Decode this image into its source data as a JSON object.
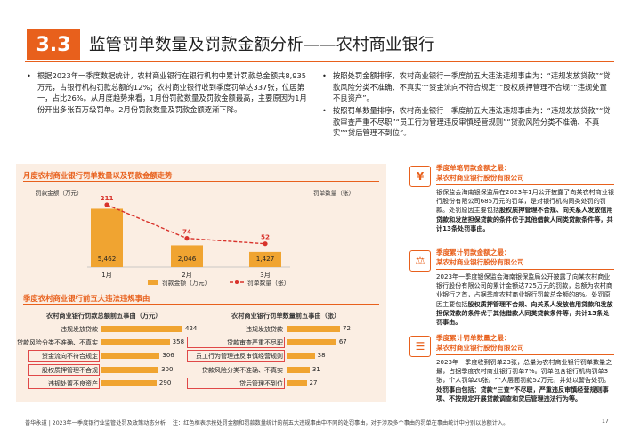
{
  "header": {
    "section_number": "3.3",
    "title": "监管罚单数量及罚款金额分析——农村商业银行"
  },
  "bullets_left": [
    "根据2023年一季度数据统计，农村商业银行在银行机构中累计罚款总金额共8,935万元，占银行机构罚款总额的12%；农村商业银行收到季度罚单达337张，位居第一，占比26%。从月度趋势来看，1月份罚款数量及罚款金额最高，主要原因为1月份开出多张百万级罚单。2月份罚款数量及罚款金额逐渐下降。"
  ],
  "bullets_right": [
    "按照处罚金额排序，农村商业银行一季度前五大违法违规事由为：“违规发放贷款”“贷款风险分类不准确、不真实”“资金流向不符合规定”“股权质押管理不合规”“违规处置不良资产”。",
    "按照罚单数量排序，农村商业银行一季度前五大违法违规事由为：“违规发放贷款”“贷款审查严重不尽职”“员工行为管理违反审慎经营规则”“贷款风险分类不准确、不真实”“贷后管理不到位”。"
  ],
  "monthly_section": {
    "title": "月度农村商业银行罚单数量以及罚款金额走势",
    "left_axis_label": "罚款金额（万元）",
    "right_axis_label": "罚单数量（张）",
    "legend_amount": "罚款金额（万元）",
    "legend_count": "罚单数量（张）"
  },
  "top5_section": {
    "title": "季度农村商业银行前五大违法违规事由",
    "left_subtitle": "农村商业银行罚款总额前五事由（万元）",
    "right_subtitle": "农村商业银行罚单数量前五事由（张）"
  },
  "chart_data": [
    {
      "type": "bar+line",
      "categories": [
        "1月",
        "2月",
        "3月"
      ],
      "series": [
        {
          "name": "罚款金额（万元）",
          "type": "bar",
          "values": [
            5462,
            2046,
            1427
          ]
        },
        {
          "name": "罚单数量（张）",
          "type": "line",
          "values": [
            211,
            74,
            52
          ]
        }
      ]
    },
    {
      "type": "bar",
      "orientation": "horizontal",
      "categories": [
        "违规发放贷款",
        "贷款风险分类不准确、不真实",
        "资金流向不符合规定",
        "股权质押管理不合规",
        "违规处置不良资产"
      ],
      "values": [
        424,
        358,
        306,
        300,
        290
      ],
      "highlighted": [
        "资金流向不符合规定",
        "股权质押管理不合规",
        "违规处置不良资产"
      ]
    },
    {
      "type": "bar",
      "orientation": "horizontal",
      "categories": [
        "违规发放贷款",
        "贷款审查严重不尽职",
        "员工行为管理违反审慎经营规则",
        "贷款风险分类不准确、不真实",
        "贷后管理不到位"
      ],
      "values": [
        72,
        67,
        38,
        31,
        27
      ],
      "highlighted": [
        "贷款审查严重不尽职",
        "员工行为管理违反审慎经营规则",
        "贷后管理不到位"
      ]
    }
  ],
  "cases": [
    {
      "icon": "banknote-icon",
      "title": "季度单笔罚款金额之最：",
      "bank": "某农村商业银行股份有限公司",
      "body": [
        {
          "t": "银保监会海南银保监局在2023年1月公开披露了向某农村商业银行股份有限公司685万元的罚单，是对银行机构同类处罚的罚款。处罚原因主要包括",
          "b": false
        },
        {
          "t": "股权质押管理不合规、向关系人发放信用贷款和发放担保贷款的条件优于其他借款人同类贷款条件等，共计13条处罚事由。",
          "b": true
        }
      ]
    },
    {
      "icon": "scale-icon",
      "title": "季度累计罚款金额之最：",
      "bank": "某农村商业银行股份有限公司",
      "body": [
        {
          "t": "2023年一季度银保监会海南银保监局公开披露了向某农村商业银行股份有限公司的累计金额达725万元的罚款，总额为农村商业银行之首，占据季度农村商业银行罚款总金额的8%。处罚原因主要包括",
          "b": false
        },
        {
          "t": "股权质押管理不合规、向关系人发放信用贷款和发放担保贷款的条件优于其他借款人同类贷款条件等，共计13条处罚事由。",
          "b": true
        }
      ]
    },
    {
      "icon": "document-icon",
      "title": "季度累计罚单数量之最：",
      "bank": "某农村商业银行股份有限公司",
      "body": [
        {
          "t": "2023年一季度收到罚单23张，总量为农村商业银行罚单数量之最，占据季度农村商业银行罚单7%。罚单包含银行机构罚单3张，个人罚单20张。个人层面罚款52万元，并处以警告处罚。",
          "b": false
        },
        {
          "t": "处罚事由包括：贷款“三查”不尽职，严重违反审慎经营规则事项、不按规定开展贷款调查和贷后管理违法行为等。",
          "b": true
        }
      ]
    }
  ],
  "footer": {
    "firm": "普华永道 | 2023年一季度银行业监管处罚及政策动态分析",
    "note": "注：红色框表示按处罚金额和罚款数量统计的前五大违规事由中不同的处罚事由，对于涉及多个事由的罚单在事由统计中分别以总额计入。",
    "page": "17"
  },
  "colors": {
    "accent": "#e8601c",
    "bar": "#f0a431",
    "line": "#d8322b",
    "panel": "#fbeee3",
    "highlight_box": "#e04848"
  }
}
